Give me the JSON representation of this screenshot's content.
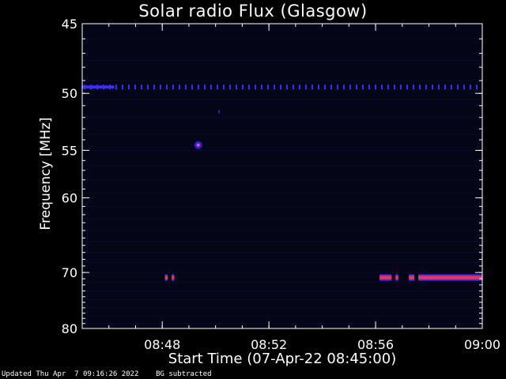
{
  "chart_data": {
    "type": "heatmap",
    "title": "Solar radio Flux (Glasgow)",
    "xlabel": "Start Time (07-Apr-22 08:45:00)",
    "ylabel": "Frequency [MHz]",
    "x_ticks": [
      "08:48",
      "08:52",
      "08:56",
      "09:00"
    ],
    "x_tick_minutes": [
      3,
      7,
      11,
      15
    ],
    "y_ticks": [
      45,
      50,
      55,
      60,
      70,
      80
    ],
    "xlim_minutes": [
      0,
      15
    ],
    "ylim": [
      45,
      80
    ],
    "y_reversed": true,
    "colors": {
      "background": "#000000",
      "plot": "#050518",
      "emission_core": "#ff3040",
      "emission_edge": "#4a2cff",
      "axis": "#ffffff"
    },
    "features": [
      {
        "name": "band-49.5",
        "freq": 49.5,
        "t_start": 0.0,
        "t_end": 15.0,
        "style": "dotted-blue"
      },
      {
        "name": "band-49.5-strong",
        "freq": 49.5,
        "t_start": 0.0,
        "t_end": 1.2,
        "style": "blue"
      },
      {
        "name": "spot-54.5",
        "freq": 54.5,
        "t_start": 4.3,
        "t_end": 4.4,
        "style": "spot"
      },
      {
        "name": "dot-51.5",
        "freq": 51.5,
        "t_start": 5.1,
        "t_end": 5.15,
        "style": "dim"
      },
      {
        "name": "band-70.8-a",
        "freq": 70.8,
        "t_start": 3.1,
        "t_end": 3.2,
        "style": "red"
      },
      {
        "name": "band-70.8-b",
        "freq": 70.8,
        "t_start": 3.35,
        "t_end": 3.45,
        "style": "red"
      },
      {
        "name": "band-70.8-c",
        "freq": 70.8,
        "t_start": 11.15,
        "t_end": 11.6,
        "style": "red"
      },
      {
        "name": "band-70.8-d",
        "freq": 70.8,
        "t_start": 11.75,
        "t_end": 11.85,
        "style": "red"
      },
      {
        "name": "band-70.8-e",
        "freq": 70.8,
        "t_start": 12.25,
        "t_end": 12.45,
        "style": "red"
      },
      {
        "name": "band-70.8-f",
        "freq": 70.8,
        "t_start": 12.6,
        "t_end": 15.0,
        "style": "red"
      }
    ]
  },
  "footer": {
    "updated": "Updated Thu Apr  7 09:16:26 2022",
    "note": "BG subtracted"
  }
}
